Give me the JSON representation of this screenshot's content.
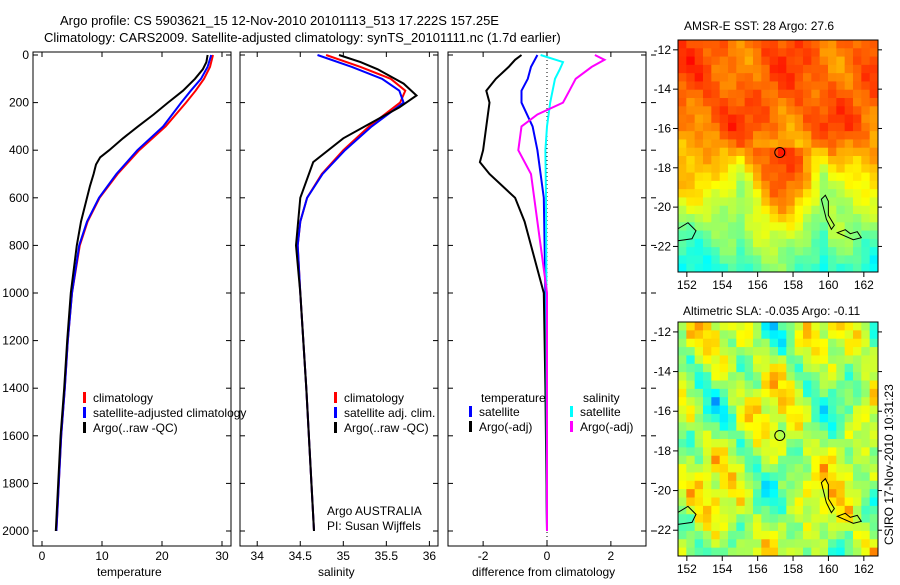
{
  "title_line1": "Argo profile: CS 5903621_15 12-Nov-2010 20101113_513 17.222S 157.25E",
  "title_line2": "Climatology: CARS2009. Satellite-adjusted climatology: synTS_20101111.nc (1.7d earlier)",
  "credit": "CSIRO 17-Nov-2010 10:31:23",
  "argo_label": "Argo AUSTRALIA",
  "pi_label": "PI: Susan Wijffels",
  "colors": {
    "red": "#ff0000",
    "blue": "#0000ff",
    "black": "#000000",
    "cyan": "#00ffff",
    "magenta": "#ff00ff"
  },
  "chart_data": [
    {
      "type": "line",
      "xlabel": "temperature",
      "ylabel": "",
      "xlim": [
        -1.5,
        31.5
      ],
      "ylim": [
        2000,
        0
      ],
      "xticks": [
        "0",
        "10",
        "20",
        "30"
      ],
      "xtick_values": [
        0,
        10,
        20,
        30
      ],
      "yticks": [
        "0",
        "200",
        "400",
        "600",
        "800",
        "1000",
        "1200",
        "1400",
        "1600",
        "1800",
        "2000"
      ],
      "legend": [
        "climatology",
        "satellite-adjusted climatology",
        "Argo(..raw -QC)"
      ],
      "series": [
        {
          "name": "climatology",
          "color": "red",
          "depth": [
            0,
            50,
            100,
            150,
            200,
            300,
            400,
            500,
            600,
            700,
            800,
            1000,
            1200,
            1400,
            1600,
            1800,
            2000
          ],
          "values": [
            28.5,
            28,
            27,
            25.6,
            24,
            20.6,
            16.2,
            12.6,
            9.6,
            7.6,
            6.3,
            5,
            4.3,
            3.8,
            3.2,
            2.8,
            2.4
          ]
        },
        {
          "name": "satellite-adjusted climatology",
          "color": "blue",
          "depth": [
            0,
            50,
            100,
            150,
            200,
            300,
            400,
            500,
            600,
            700,
            800,
            1000,
            1200,
            1400,
            1600,
            1800,
            2000
          ],
          "values": [
            28.2,
            27.6,
            26.5,
            24.8,
            23.2,
            20.2,
            15.9,
            12.4,
            9.5,
            7.5,
            6.2,
            5,
            4.3,
            3.8,
            3.2,
            2.8,
            2.4
          ]
        },
        {
          "name": "Argo(..raw -QC)",
          "color": "black",
          "depth": [
            0,
            30,
            60,
            100,
            150,
            200,
            250,
            300,
            350,
            400,
            430,
            460,
            500,
            550,
            600,
            700,
            800,
            1000,
            1200,
            1400,
            1600,
            1800,
            2000
          ],
          "values": [
            27.6,
            27.4,
            26.8,
            25.5,
            23.5,
            21,
            18.6,
            16,
            13.5,
            11.2,
            9.7,
            9,
            8.6,
            8,
            7.5,
            6.5,
            5.8,
            4.8,
            4.2,
            3.7,
            3.1,
            2.7,
            2.3
          ]
        }
      ]
    },
    {
      "type": "line",
      "xlabel": "salinity",
      "xlim": [
        33.8,
        36.1
      ],
      "ylim": [
        2000,
        0
      ],
      "xticks": [
        "34",
        "34.5",
        "35",
        "35.5",
        "36"
      ],
      "xtick_values": [
        34,
        34.5,
        35,
        35.5,
        36
      ],
      "legend": [
        "climatology",
        "satellite adj. clim.",
        "Argo(..raw -QC)"
      ],
      "series": [
        {
          "name": "climatology",
          "color": "red",
          "depth": [
            0,
            50,
            100,
            150,
            200,
            300,
            400,
            500,
            600,
            700,
            800,
            1000,
            1400,
            2000
          ],
          "values": [
            34.8,
            35.2,
            35.55,
            35.72,
            35.66,
            35.3,
            35.0,
            34.75,
            34.58,
            34.5,
            34.47,
            34.5,
            34.57,
            34.66
          ]
        },
        {
          "name": "satellite adj. clim.",
          "color": "blue",
          "depth": [
            0,
            50,
            100,
            150,
            200,
            300,
            400,
            500,
            600,
            700,
            800,
            1000,
            1400,
            2000
          ],
          "values": [
            34.7,
            35.1,
            35.45,
            35.65,
            35.7,
            35.33,
            35.02,
            34.76,
            34.58,
            34.5,
            34.47,
            34.5,
            34.57,
            34.66
          ]
        },
        {
          "name": "Argo(..raw -QC)",
          "color": "black",
          "depth": [
            0,
            30,
            60,
            120,
            170,
            220,
            250,
            300,
            350,
            450,
            600,
            800,
            1000,
            1400,
            2000
          ],
          "values": [
            34.95,
            35.2,
            35.4,
            35.7,
            35.85,
            35.65,
            35.5,
            35.25,
            35.0,
            34.65,
            34.5,
            34.45,
            34.5,
            34.57,
            34.66
          ]
        }
      ]
    },
    {
      "type": "line",
      "xlabel": "difference from climatology",
      "xlim": [
        -3.1,
        3.1
      ],
      "ylim": [
        2000,
        0
      ],
      "xticks": [
        "-2",
        "0",
        "2"
      ],
      "xtick_values": [
        -2,
        0,
        2
      ],
      "legend_temperature_title": "temperature",
      "legend_salinity_title": "salinity",
      "legend": [
        "satellite",
        "Argo(-adj)",
        "satellite",
        "Argo(-adj)"
      ],
      "series": [
        {
          "name": "temperature satellite",
          "color": "blue",
          "depth": [
            0,
            50,
            100,
            150,
            200,
            300,
            400,
            600,
            1000,
            2000
          ],
          "values": [
            -0.3,
            -0.5,
            -0.6,
            -0.8,
            -0.8,
            -0.45,
            -0.3,
            -0.1,
            -0.05,
            0
          ]
        },
        {
          "name": "temperature Argo(-adj)",
          "color": "black",
          "depth": [
            0,
            20,
            50,
            100,
            150,
            200,
            300,
            400,
            450,
            500,
            550,
            600,
            700,
            800,
            1000,
            1400,
            2000
          ],
          "values": [
            -0.8,
            -1.0,
            -1.2,
            -1.6,
            -1.9,
            -1.8,
            -1.9,
            -2.0,
            -2.1,
            -1.8,
            -1.4,
            -1.0,
            -0.7,
            -0.5,
            -0.1,
            -0.05,
            0
          ]
        },
        {
          "name": "salinity satellite",
          "color": "cyan",
          "depth": [
            0,
            30,
            60,
            100,
            200,
            300,
            400,
            600,
            1000,
            2000
          ],
          "values": [
            -0.2,
            0.5,
            0.4,
            0.25,
            0.1,
            0.0,
            -0.05,
            -0.03,
            -0.02,
            0
          ]
        },
        {
          "name": "salinity Argo(-adj)",
          "color": "magenta",
          "depth": [
            0,
            20,
            50,
            100,
            150,
            200,
            250,
            300,
            400,
            500,
            700,
            1000,
            2000
          ],
          "values": [
            1.5,
            1.8,
            1.4,
            0.9,
            0.7,
            0.5,
            -0.3,
            -0.8,
            -0.9,
            -0.5,
            -0.3,
            0,
            0
          ]
        }
      ]
    },
    {
      "type": "heatmap",
      "title": "AMSR-E SST: 28 Argo: 27.6",
      "xticks": [
        "152",
        "154",
        "156",
        "158",
        "160",
        "162"
      ],
      "yticks": [
        "-12",
        "-14",
        "-16",
        "-18",
        "-20",
        "-22"
      ],
      "xlim": [
        151.5,
        162.8
      ],
      "ylim": [
        -23.3,
        -11.5
      ],
      "marker": {
        "lon": 157.25,
        "lat": -17.222
      }
    },
    {
      "type": "heatmap",
      "title": "Altimetric SLA: -0.035 Argo: -0.11",
      "xticks": [
        "152",
        "154",
        "156",
        "158",
        "160",
        "162"
      ],
      "yticks": [
        "-12",
        "-14",
        "-16",
        "-18",
        "-20",
        "-22"
      ],
      "xlim": [
        151.5,
        162.8
      ],
      "ylim": [
        -23.3,
        -11.5
      ],
      "marker": {
        "lon": 157.25,
        "lat": -17.222
      }
    }
  ]
}
